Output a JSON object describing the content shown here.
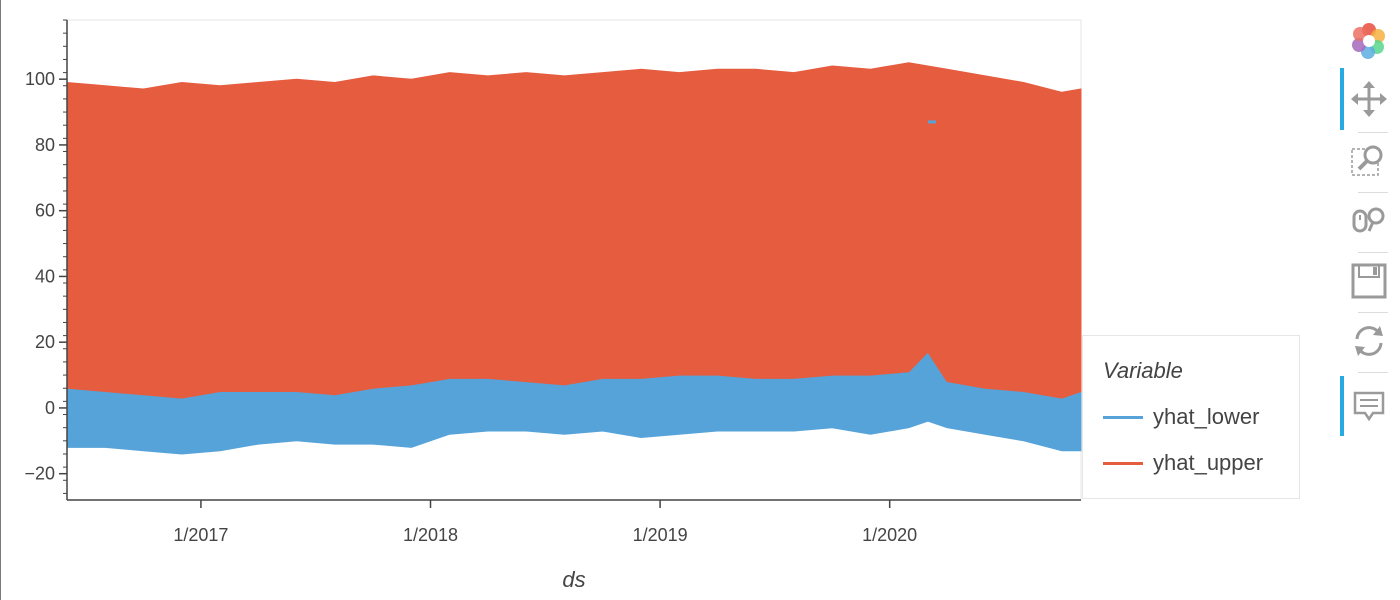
{
  "chart_data": {
    "type": "area",
    "title": "",
    "xlabel": "ds",
    "ylabel": "",
    "x_range": [
      "2016-06",
      "2020-11"
    ],
    "x_ticks": [
      "1/2017",
      "1/2018",
      "1/2019",
      "1/2020"
    ],
    "ylim": [
      -28,
      118
    ],
    "y_ticks": [
      -20,
      0,
      20,
      40,
      60,
      80,
      100
    ],
    "y_tick_labels": [
      "−20",
      "0",
      "20",
      "40",
      "60",
      "80",
      "100"
    ],
    "grid": false,
    "legend_position": "right",
    "legend_title": "Variable",
    "series": [
      {
        "name": "yhat_lower",
        "color": "#56a3d9",
        "x": [
          "2016-06",
          "2016-08",
          "2016-10",
          "2016-12",
          "2017-02",
          "2017-04",
          "2017-06",
          "2017-08",
          "2017-10",
          "2017-12",
          "2018-02",
          "2018-04",
          "2018-06",
          "2018-08",
          "2018-10",
          "2018-12",
          "2019-02",
          "2019-04",
          "2019-06",
          "2019-08",
          "2019-10",
          "2019-12",
          "2020-02",
          "2020-03",
          "2020-04",
          "2020-06",
          "2020-08",
          "2020-10",
          "2020-11"
        ],
        "low": [
          -12,
          -12,
          -13,
          -14,
          -13,
          -11,
          -10,
          -11,
          -11,
          -12,
          -8,
          -7,
          -7,
          -8,
          -7,
          -9,
          -8,
          -7,
          -7,
          -7,
          -6,
          -8,
          -6,
          -4,
          -6,
          -8,
          -10,
          -13,
          -13
        ],
        "high": [
          6,
          5,
          4,
          3,
          5,
          5,
          5,
          4,
          6,
          7,
          9,
          9,
          8,
          7,
          9,
          9,
          10,
          10,
          9,
          9,
          10,
          10,
          11,
          17,
          8,
          6,
          5,
          3,
          5
        ]
      },
      {
        "name": "yhat_upper",
        "color": "#e65c3f",
        "x": [
          "2016-06",
          "2016-08",
          "2016-10",
          "2016-12",
          "2017-02",
          "2017-04",
          "2017-06",
          "2017-08",
          "2017-10",
          "2017-12",
          "2018-02",
          "2018-04",
          "2018-06",
          "2018-08",
          "2018-10",
          "2018-12",
          "2019-02",
          "2019-04",
          "2019-06",
          "2019-08",
          "2019-10",
          "2019-12",
          "2020-02",
          "2020-03",
          "2020-04",
          "2020-06",
          "2020-08",
          "2020-10",
          "2020-11"
        ],
        "low": [
          6,
          5,
          4,
          3,
          5,
          5,
          5,
          4,
          6,
          7,
          9,
          9,
          8,
          7,
          9,
          9,
          10,
          10,
          9,
          9,
          10,
          10,
          11,
          17,
          8,
          6,
          5,
          3,
          5
        ],
        "high": [
          99,
          98,
          97,
          99,
          98,
          99,
          100,
          99,
          101,
          100,
          102,
          101,
          102,
          101,
          102,
          103,
          102,
          103,
          103,
          102,
          104,
          103,
          105,
          104,
          103,
          101,
          99,
          96,
          97
        ]
      }
    ],
    "annotations": [
      {
        "x": "2020-03",
        "y": 87
      }
    ]
  },
  "toolbar": {
    "tools": [
      {
        "name": "bokeh-logo-icon"
      },
      {
        "name": "pan-icon",
        "active": true
      },
      {
        "name": "box-zoom-icon"
      },
      {
        "name": "wheel-zoom-icon"
      },
      {
        "name": "save-icon"
      },
      {
        "name": "reset-icon"
      },
      {
        "name": "hover-icon",
        "active": true
      }
    ]
  }
}
